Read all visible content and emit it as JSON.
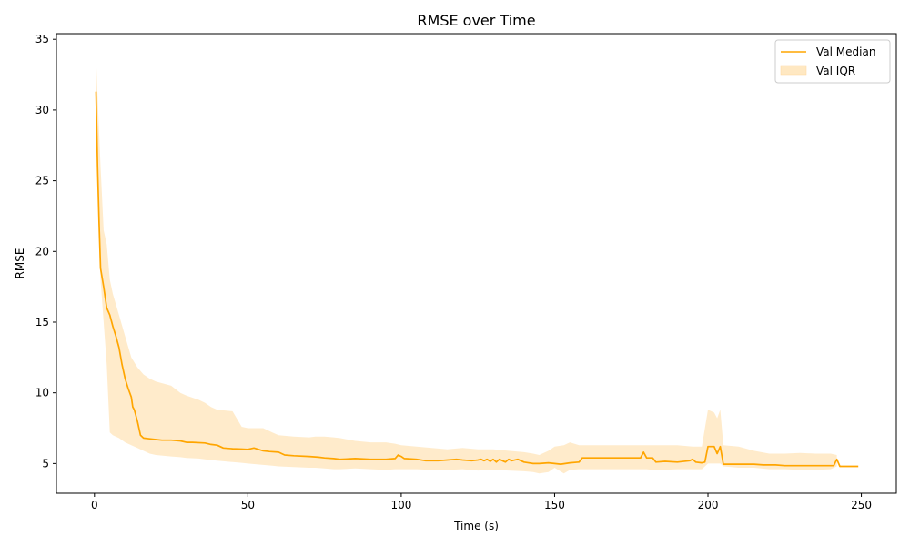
{
  "chart_data": {
    "type": "line",
    "title": "RMSE over Time",
    "xlabel": "Time (s)",
    "ylabel": "RMSE",
    "xlim": [
      -12.4,
      261.4
    ],
    "ylim": [
      2.9,
      35.4
    ],
    "xticks": [
      0,
      50,
      100,
      150,
      200,
      250
    ],
    "yticks": [
      5,
      10,
      15,
      20,
      25,
      30,
      35
    ],
    "grid": false,
    "legend_position": "top-right",
    "colors": {
      "median": "#ffa500",
      "iqr_fill": "#ffe8c2"
    },
    "series": [
      {
        "name": "Val Median",
        "kind": "line",
        "points": [
          [
            0.5,
            31.3
          ],
          [
            1,
            26
          ],
          [
            1.5,
            22
          ],
          [
            2,
            18.8
          ],
          [
            3,
            17.5
          ],
          [
            4,
            16
          ],
          [
            5,
            15.5
          ],
          [
            6,
            14.7
          ],
          [
            7,
            14
          ],
          [
            8,
            13.2
          ],
          [
            9,
            12
          ],
          [
            10,
            11
          ],
          [
            11,
            10.3
          ],
          [
            12,
            9.7
          ],
          [
            12.5,
            9
          ],
          [
            13,
            8.8
          ],
          [
            14,
            8
          ],
          [
            15,
            7
          ],
          [
            16,
            6.8
          ],
          [
            18,
            6.75
          ],
          [
            20,
            6.7
          ],
          [
            22,
            6.65
          ],
          [
            25,
            6.65
          ],
          [
            28,
            6.6
          ],
          [
            30,
            6.5
          ],
          [
            32,
            6.5
          ],
          [
            36,
            6.45
          ],
          [
            38,
            6.35
          ],
          [
            40,
            6.3
          ],
          [
            42,
            6.1
          ],
          [
            45,
            6.05
          ],
          [
            48,
            6.02
          ],
          [
            50,
            6
          ],
          [
            52,
            6.1
          ],
          [
            55,
            5.9
          ],
          [
            57,
            5.85
          ],
          [
            60,
            5.8
          ],
          [
            62,
            5.6
          ],
          [
            65,
            5.55
          ],
          [
            70,
            5.5
          ],
          [
            73,
            5.45
          ],
          [
            75,
            5.4
          ],
          [
            78,
            5.35
          ],
          [
            80,
            5.3
          ],
          [
            85,
            5.35
          ],
          [
            90,
            5.3
          ],
          [
            95,
            5.3
          ],
          [
            98,
            5.35
          ],
          [
            99,
            5.6
          ],
          [
            100,
            5.5
          ],
          [
            101,
            5.35
          ],
          [
            105,
            5.3
          ],
          [
            108,
            5.2
          ],
          [
            112,
            5.2
          ],
          [
            115,
            5.25
          ],
          [
            118,
            5.3
          ],
          [
            120,
            5.25
          ],
          [
            123,
            5.2
          ],
          [
            125,
            5.25
          ],
          [
            126,
            5.3
          ],
          [
            127,
            5.2
          ],
          [
            128,
            5.3
          ],
          [
            129,
            5.15
          ],
          [
            130,
            5.3
          ],
          [
            131,
            5.1
          ],
          [
            132,
            5.3
          ],
          [
            133,
            5.2
          ],
          [
            134,
            5.1
          ],
          [
            135,
            5.3
          ],
          [
            136,
            5.2
          ],
          [
            138,
            5.3
          ],
          [
            140,
            5.1
          ],
          [
            143,
            5.0
          ],
          [
            145,
            5.0
          ],
          [
            148,
            5.05
          ],
          [
            150,
            5.0
          ],
          [
            152,
            4.95
          ],
          [
            155,
            5.05
          ],
          [
            158,
            5.1
          ],
          [
            159,
            5.4
          ],
          [
            162,
            5.4
          ],
          [
            170,
            5.4
          ],
          [
            175,
            5.4
          ],
          [
            178,
            5.4
          ],
          [
            179,
            5.8
          ],
          [
            180,
            5.4
          ],
          [
            182,
            5.4
          ],
          [
            183,
            5.1
          ],
          [
            186,
            5.15
          ],
          [
            190,
            5.1
          ],
          [
            194,
            5.2
          ],
          [
            195,
            5.3
          ],
          [
            196,
            5.1
          ],
          [
            198,
            5.05
          ],
          [
            199,
            5.1
          ],
          [
            200,
            6.2
          ],
          [
            202,
            6.2
          ],
          [
            203,
            5.7
          ],
          [
            204,
            6.2
          ],
          [
            205,
            4.95
          ],
          [
            210,
            4.95
          ],
          [
            215,
            4.95
          ],
          [
            218,
            4.9
          ],
          [
            222,
            4.9
          ],
          [
            225,
            4.85
          ],
          [
            230,
            4.85
          ],
          [
            235,
            4.85
          ],
          [
            238,
            4.85
          ],
          [
            241,
            4.85
          ],
          [
            242,
            5.3
          ],
          [
            243,
            4.8
          ],
          [
            249,
            4.8
          ]
        ]
      },
      {
        "name": "Val IQR",
        "kind": "band",
        "x": [
          0.5,
          1,
          2,
          3,
          4,
          5,
          6,
          8,
          10,
          12,
          14,
          16,
          18,
          20,
          25,
          28,
          30,
          34,
          36,
          38,
          40,
          45,
          48,
          50,
          55,
          58,
          60,
          65,
          70,
          72,
          75,
          78,
          80,
          85,
          90,
          95,
          98,
          100,
          105,
          110,
          115,
          120,
          125,
          130,
          135,
          140,
          143,
          145,
          148,
          150,
          153,
          155,
          158,
          160,
          165,
          170,
          175,
          178,
          180,
          182,
          185,
          190,
          195,
          198,
          200,
          202,
          203,
          204,
          205,
          210,
          215,
          220,
          225,
          230,
          235,
          240,
          242
        ],
        "upper": [
          33.8,
          31,
          26,
          21.5,
          20.5,
          18,
          17,
          15.5,
          14,
          12.5,
          11.8,
          11.3,
          11,
          10.8,
          10.5,
          10,
          9.8,
          9.5,
          9.3,
          9,
          8.8,
          8.7,
          7.6,
          7.5,
          7.5,
          7.2,
          7,
          6.9,
          6.85,
          6.9,
          6.9,
          6.85,
          6.8,
          6.6,
          6.5,
          6.5,
          6.4,
          6.3,
          6.2,
          6.1,
          6.0,
          6.1,
          6.0,
          6.0,
          5.9,
          5.8,
          5.7,
          5.6,
          5.9,
          6.2,
          6.3,
          6.5,
          6.3,
          6.3,
          6.3,
          6.3,
          6.3,
          6.3,
          6.3,
          6.3,
          6.3,
          6.3,
          6.2,
          6.2,
          8.8,
          8.6,
          8.2,
          8.8,
          6.3,
          6.2,
          5.9,
          5.7,
          5.7,
          5.75,
          5.7,
          5.7,
          5.6
        ],
        "lower": [
          31.2,
          26,
          18,
          15,
          12,
          7.2,
          7,
          6.8,
          6.5,
          6.3,
          6.1,
          5.9,
          5.7,
          5.6,
          5.5,
          5.45,
          5.4,
          5.35,
          5.3,
          5.25,
          5.2,
          5.1,
          5.05,
          5.0,
          4.9,
          4.85,
          4.8,
          4.75,
          4.7,
          4.7,
          4.65,
          4.6,
          4.6,
          4.65,
          4.6,
          4.55,
          4.6,
          4.6,
          4.6,
          4.55,
          4.55,
          4.6,
          4.5,
          4.55,
          4.5,
          4.45,
          4.4,
          4.3,
          4.4,
          4.7,
          4.3,
          4.55,
          4.6,
          4.6,
          4.6,
          4.6,
          4.6,
          4.6,
          4.6,
          4.55,
          4.55,
          4.6,
          4.6,
          4.6,
          5.0,
          5.0,
          5.0,
          5.0,
          4.8,
          4.7,
          4.7,
          4.6,
          4.6,
          4.55,
          4.55,
          4.6,
          4.8
        ]
      }
    ]
  }
}
